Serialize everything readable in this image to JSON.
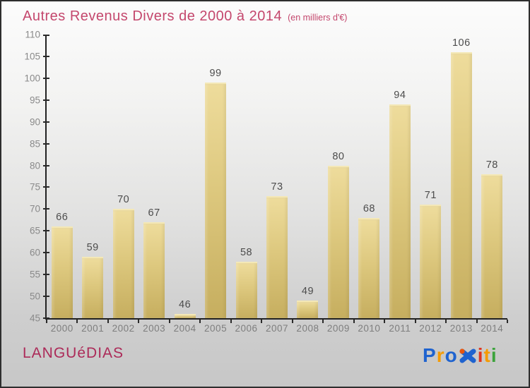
{
  "chart_data": {
    "type": "bar",
    "title": "Autres Revenus Divers de 2000 à 2014",
    "subtitle": "(en milliers d'€)",
    "categories": [
      "2000",
      "2001",
      "2002",
      "2003",
      "2004",
      "2005",
      "2006",
      "2007",
      "2008",
      "2009",
      "2010",
      "2011",
      "2012",
      "2013",
      "2014"
    ],
    "values": [
      66,
      59,
      70,
      67,
      46,
      99,
      58,
      73,
      49,
      80,
      68,
      94,
      71,
      106,
      78
    ],
    "ylabel": "",
    "xlabel": "",
    "ylim": [
      45,
      110
    ],
    "ytick_step": 5,
    "grid": "off",
    "legend": "none",
    "bar_color_top": "#eedc9c",
    "bar_color_bottom": "#c6ae5f",
    "value_label_color": "#4c4c4c",
    "axis_color": "#222222",
    "tick_label_color": "#8a8a8a",
    "title_color": "#c4476d"
  },
  "footer": {
    "company": "LANGUéDIAS",
    "company_color": "#ac2a58",
    "logo": {
      "name": "Proxiti",
      "letters": [
        {
          "ch": "P",
          "color": "#1f63cf"
        },
        {
          "ch": "r",
          "color": "#f59b00"
        },
        {
          "ch": "o",
          "color": "#1f63cf"
        },
        {
          "ch": "x",
          "color": "#1f63cf",
          "icon": "x-dots-icon",
          "accent_dot_color": "#e8560d"
        },
        {
          "ch": "i",
          "color": "#df3420"
        },
        {
          "ch": "t",
          "color": "#f59b00"
        },
        {
          "ch": "i",
          "color": "#3ca33c"
        }
      ]
    }
  }
}
